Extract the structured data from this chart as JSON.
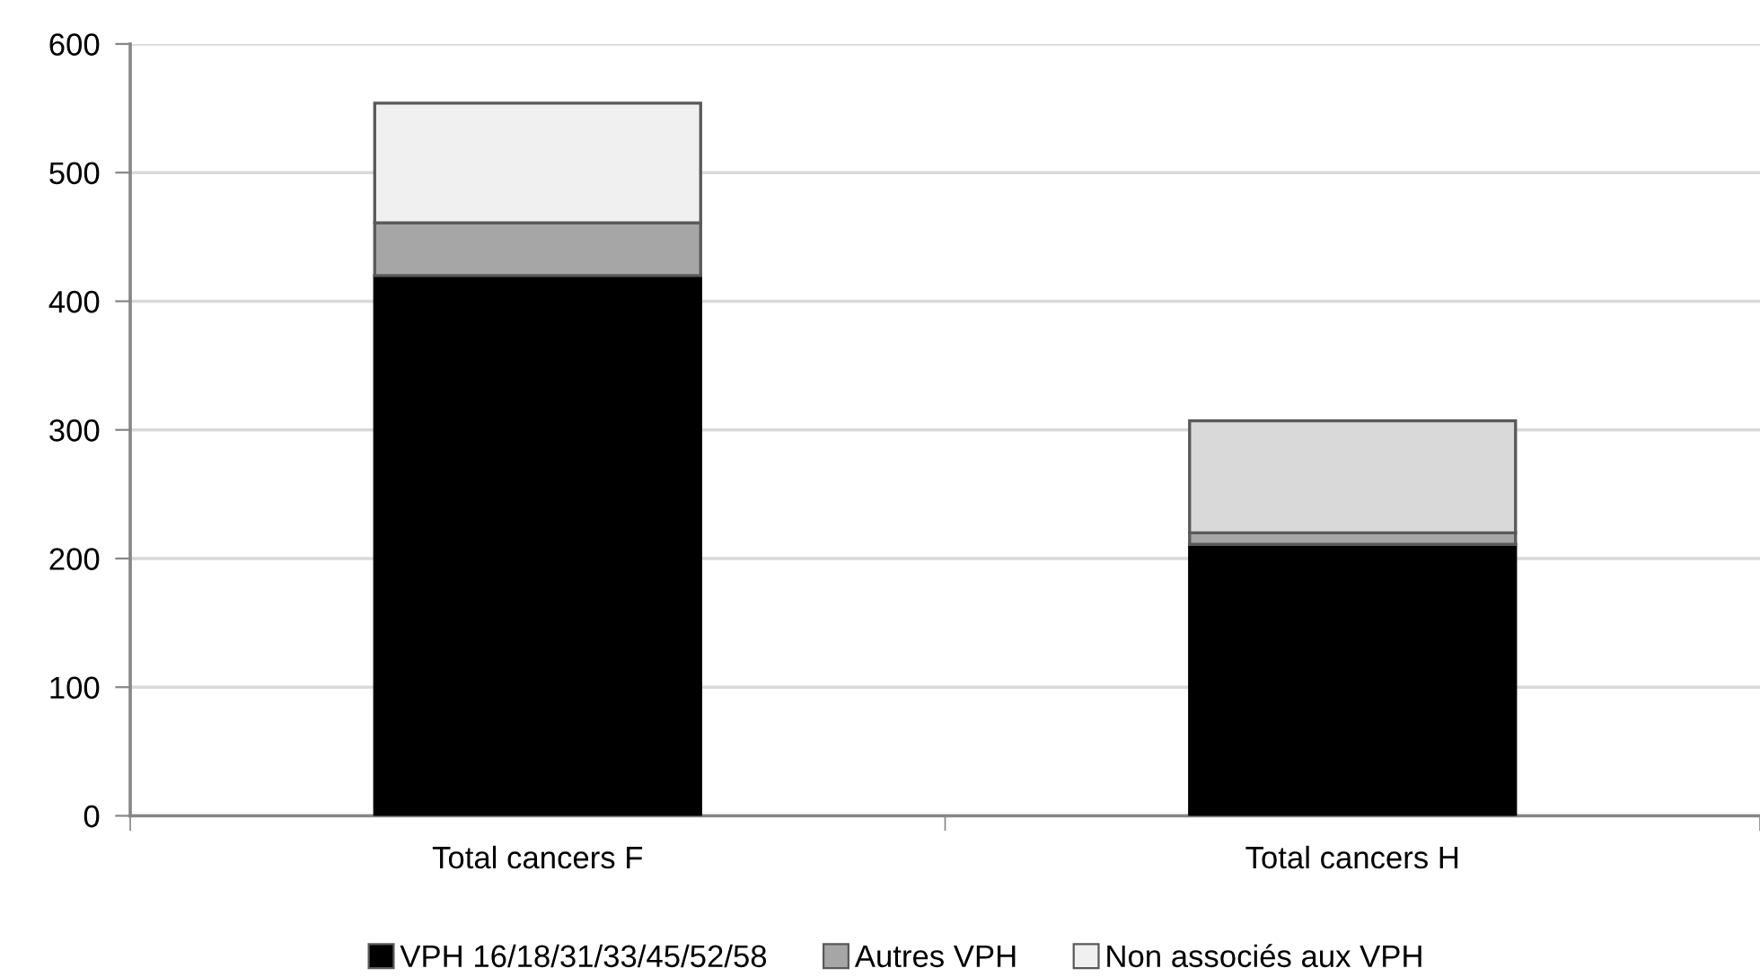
{
  "chart_data": {
    "type": "bar",
    "stacked": true,
    "categories": [
      "Total cancers F",
      "Total cancers H"
    ],
    "series": [
      {
        "name": "VPH 16/18/31/33/45/52/58",
        "color": "#000000",
        "values": [
          420,
          211
        ]
      },
      {
        "name": "Autres VPH",
        "color": "#a6a6a6",
        "values": [
          41,
          9
        ]
      },
      {
        "name": "Non associés aux VPH",
        "color": "#f0f0f0",
        "colors": [
          "#f0f0f0",
          "#d9d9d9"
        ],
        "values": [
          93,
          87
        ]
      }
    ],
    "ylim": [
      0,
      600
    ],
    "yticks": [
      0,
      100,
      200,
      300,
      400,
      500,
      600
    ],
    "grid": "y",
    "legend": "bottom"
  }
}
